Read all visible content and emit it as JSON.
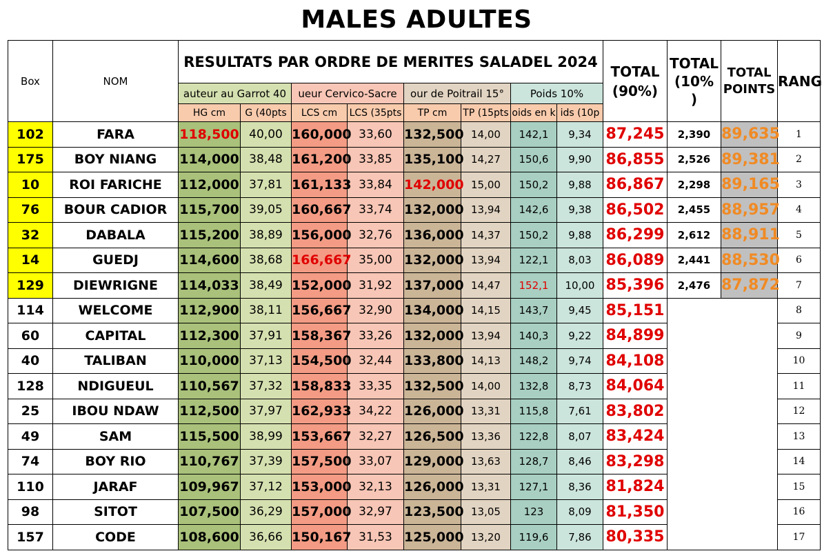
{
  "title": "MALES ADULTES",
  "header": {
    "box": "Box",
    "nom": "NOM",
    "results": "RESULTATS PAR ORDRE DE MERITES SALADEL 2024",
    "hauteur": "auteur au Garrot 40",
    "cervico": "ueur Cervico-Sacre",
    "poitrail": "our de Poitrail 15°",
    "poids": "Poids 10%",
    "hg_cm": "HG cm",
    "hg_pts": "G (40pts",
    "lcs_cm": "LCS cm",
    "lcs_pts": "LCS (35pts",
    "tp_cm": "TP cm",
    "tp_pts": "TP (15pts",
    "pd_kg": "oids en k",
    "pd_pts": "ids (10p",
    "total90_a": "TOTAL",
    "total90_b": "(90%)",
    "total10_a": "TOTAL",
    "total10_b": "(10%",
    "total10_c": ")",
    "totalpts_a": "TOTAL",
    "totalpts_b": "POINTS",
    "rang": "RANG"
  },
  "rows": [
    {
      "box": "102",
      "nom": "FARA",
      "hg": "118,500",
      "hgp": "40,00",
      "lcs": "160,000",
      "lcsp": "33,60",
      "tp": "132,500",
      "tpp": "14,00",
      "pd": "142,1",
      "pdp": "9,34",
      "t90": "87,245",
      "t10": "2,390",
      "tot": "89,635",
      "rang": "1"
    },
    {
      "box": "175",
      "nom": "BOY NIANG",
      "hg": "114,000",
      "hgp": "38,48",
      "lcs": "161,200",
      "lcsp": "33,85",
      "tp": "135,100",
      "tpp": "14,27",
      "pd": "150,6",
      "pdp": "9,90",
      "t90": "86,855",
      "t10": "2,526",
      "tot": "89,381",
      "rang": "2"
    },
    {
      "box": "10",
      "nom": "ROI FARICHE",
      "hg": "112,000",
      "hgp": "37,81",
      "lcs": "161,133",
      "lcsp": "33,84",
      "tp": "142,000",
      "tpp": "15,00",
      "pd": "150,2",
      "pdp": "9,88",
      "t90": "86,867",
      "t10": "2,298",
      "tot": "89,165",
      "rang": "3"
    },
    {
      "box": "76",
      "nom": "BOUR CADIOR",
      "hg": "115,700",
      "hgp": "39,05",
      "lcs": "160,667",
      "lcsp": "33,74",
      "tp": "132,000",
      "tpp": "13,94",
      "pd": "142,6",
      "pdp": "9,38",
      "t90": "86,502",
      "t10": "2,455",
      "tot": "88,957",
      "rang": "4"
    },
    {
      "box": "32",
      "nom": "DABALA",
      "hg": "115,200",
      "hgp": "38,89",
      "lcs": "156,000",
      "lcsp": "32,76",
      "tp": "136,000",
      "tpp": "14,37",
      "pd": "150,2",
      "pdp": "9,88",
      "t90": "86,299",
      "t10": "2,612",
      "tot": "88,911",
      "rang": "5"
    },
    {
      "box": "14",
      "nom": "GUEDJ",
      "hg": "114,600",
      "hgp": "38,68",
      "lcs": "166,667",
      "lcsp": "35,00",
      "tp": "132,000",
      "tpp": "13,94",
      "pd": "122,1",
      "pdp": "8,03",
      "t90": "86,089",
      "t10": "2,441",
      "tot": "88,530",
      "rang": "6"
    },
    {
      "box": "129",
      "nom": "DIEWRIGNE",
      "hg": "114,033",
      "hgp": "38,49",
      "lcs": "152,000",
      "lcsp": "31,92",
      "tp": "137,000",
      "tpp": "14,47",
      "pd": "152,1",
      "pdp": "10,00",
      "t90": "85,396",
      "t10": "2,476",
      "tot": "87,872",
      "rang": "7"
    },
    {
      "box": "114",
      "nom": "WELCOME",
      "hg": "112,900",
      "hgp": "38,11",
      "lcs": "156,667",
      "lcsp": "32,90",
      "tp": "134,000",
      "tpp": "14,15",
      "pd": "143,7",
      "pdp": "9,45",
      "t90": "85,151",
      "t10": "",
      "tot": "",
      "rang": "8"
    },
    {
      "box": "60",
      "nom": "CAPITAL",
      "hg": "112,300",
      "hgp": "37,91",
      "lcs": "158,367",
      "lcsp": "33,26",
      "tp": "132,000",
      "tpp": "13,94",
      "pd": "140,3",
      "pdp": "9,22",
      "t90": "84,899",
      "t10": "",
      "tot": "",
      "rang": "9"
    },
    {
      "box": "40",
      "nom": "TALIBAN",
      "hg": "110,000",
      "hgp": "37,13",
      "lcs": "154,500",
      "lcsp": "32,44",
      "tp": "133,800",
      "tpp": "14,13",
      "pd": "148,2",
      "pdp": "9,74",
      "t90": "84,108",
      "t10": "",
      "tot": "",
      "rang": "10"
    },
    {
      "box": "128",
      "nom": "NDIGUEUL",
      "hg": "110,567",
      "hgp": "37,32",
      "lcs": "158,833",
      "lcsp": "33,35",
      "tp": "132,500",
      "tpp": "14,00",
      "pd": "132,8",
      "pdp": "8,73",
      "t90": "84,064",
      "t10": "",
      "tot": "",
      "rang": "11"
    },
    {
      "box": "25",
      "nom": "IBOU NDAW",
      "hg": "112,500",
      "hgp": "37,97",
      "lcs": "162,933",
      "lcsp": "34,22",
      "tp": "126,000",
      "tpp": "13,31",
      "pd": "115,8",
      "pdp": "7,61",
      "t90": "83,802",
      "t10": "",
      "tot": "",
      "rang": "12"
    },
    {
      "box": "49",
      "nom": "SAM",
      "hg": "115,500",
      "hgp": "38,99",
      "lcs": "153,667",
      "lcsp": "32,27",
      "tp": "126,500",
      "tpp": "13,36",
      "pd": "122,8",
      "pdp": "8,07",
      "t90": "83,424",
      "t10": "",
      "tot": "",
      "rang": "13"
    },
    {
      "box": "74",
      "nom": "BOY RIO",
      "hg": "110,767",
      "hgp": "37,39",
      "lcs": "157,500",
      "lcsp": "33,07",
      "tp": "129,000",
      "tpp": "13,63",
      "pd": "128,7",
      "pdp": "8,46",
      "t90": "83,298",
      "t10": "",
      "tot": "",
      "rang": "14"
    },
    {
      "box": "110",
      "nom": "JARAF",
      "hg": "109,967",
      "hgp": "37,12",
      "lcs": "153,000",
      "lcsp": "32,13",
      "tp": "126,000",
      "tpp": "13,31",
      "pd": "127,1",
      "pdp": "8,36",
      "t90": "81,824",
      "t10": "",
      "tot": "",
      "rang": "15"
    },
    {
      "box": "98",
      "nom": "SITOT",
      "hg": "107,500",
      "hgp": "36,29",
      "lcs": "157,000",
      "lcsp": "32,97",
      "tp": "123,500",
      "tpp": "13,05",
      "pd": "123",
      "pdp": "8,09",
      "t90": "81,350",
      "t10": "",
      "tot": "",
      "rang": "16"
    },
    {
      "box": "157",
      "nom": "CODE",
      "hg": "108,600",
      "hgp": "36,66",
      "lcs": "150,167",
      "lcsp": "31,53",
      "tp": "125,000",
      "tpp": "13,20",
      "pd": "119,6",
      "pdp": "7,86",
      "t90": "80,335",
      "t10": "",
      "tot": "",
      "rang": "17"
    }
  ],
  "colors": {
    "highlight_box": "#ffff00",
    "red_text": "#e00000",
    "orange_total": "#f08a24"
  }
}
